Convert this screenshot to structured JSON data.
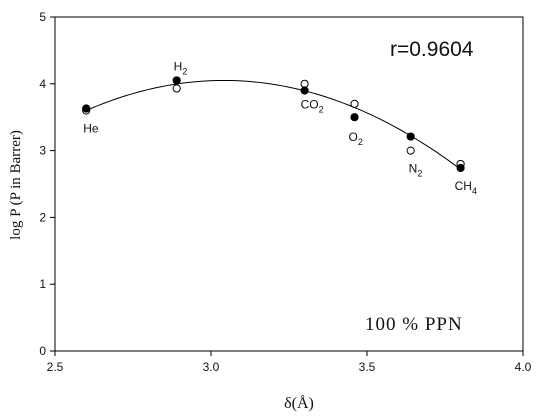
{
  "chart_data": {
    "type": "scatter",
    "xlabel": "δ(Å)",
    "ylabel": "log P (P in Barrer)",
    "xlim": [
      2.5,
      4.0
    ],
    "ylim": [
      0,
      5
    ],
    "x_ticks": [
      2.5,
      3.0,
      3.5,
      4.0
    ],
    "y_ticks": [
      0,
      1,
      2,
      3,
      4,
      5
    ],
    "grid": false,
    "annotations": {
      "r_value": "r=0.9604",
      "sample": "100 % PPN"
    },
    "points": [
      {
        "label": "He",
        "sub": "",
        "x": 2.6,
        "filled": 3.63,
        "open": 3.6
      },
      {
        "label": "H",
        "sub": "2",
        "x": 2.89,
        "filled": 4.05,
        "open": 3.93
      },
      {
        "label": "CO",
        "sub": "2",
        "x": 3.3,
        "filled": 3.9,
        "open": 4.0
      },
      {
        "label": "O",
        "sub": "2",
        "x": 3.46,
        "filled": 3.5,
        "open": 3.7
      },
      {
        "label": "N",
        "sub": "2",
        "x": 3.64,
        "filled": 3.21,
        "open": 3.0
      },
      {
        "label": "CH",
        "sub": "4",
        "x": 3.8,
        "filled": 2.74,
        "open": 2.8
      }
    ],
    "fit_curve": {
      "type": "quadratic",
      "x_range": [
        2.6,
        3.8
      ],
      "points": [
        [
          2.6,
          3.6
        ],
        [
          3.05,
          4.05
        ],
        [
          3.8,
          2.72
        ]
      ]
    }
  }
}
